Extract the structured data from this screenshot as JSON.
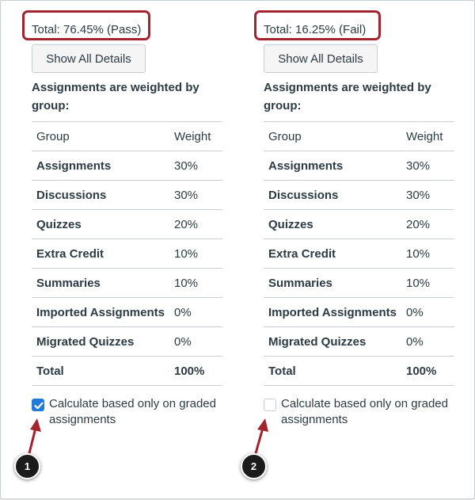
{
  "panels": {
    "pass": {
      "total": "Total: 76.45% (Pass)",
      "show_details": "Show All Details",
      "heading": "Assignments are weighted by group:",
      "calc_checked": true,
      "calc_label": "Calculate based only on graded assignments",
      "callout": "1"
    },
    "fail": {
      "total": "Total: 16.25% (Fail)",
      "show_details": "Show All Details",
      "heading": "Assignments are weighted by group:",
      "calc_checked": false,
      "calc_label": "Calculate based only on graded assignments",
      "callout": "2"
    }
  },
  "table": {
    "headers": [
      "Group",
      "Weight"
    ],
    "rows": [
      {
        "group": "Assignments",
        "weight": "30%"
      },
      {
        "group": "Discussions",
        "weight": "30%"
      },
      {
        "group": "Quizzes",
        "weight": "20%"
      },
      {
        "group": "Extra Credit",
        "weight": "10%"
      },
      {
        "group": "Summaries",
        "weight": "10%"
      },
      {
        "group": "Imported Assignments",
        "weight": "0%"
      },
      {
        "group": "Migrated Quizzes",
        "weight": "0%"
      }
    ],
    "total": {
      "group": "Total",
      "weight": "100%"
    }
  },
  "colors": {
    "highlight_border": "#a3242c",
    "checkbox_checked": "#1f7ad8",
    "text": "#2d3b45",
    "callout_bg": "#1b1b1b"
  },
  "icons": {
    "checkbox_checked": "checkmark-icon",
    "arrow": "arrow-up-icon"
  }
}
